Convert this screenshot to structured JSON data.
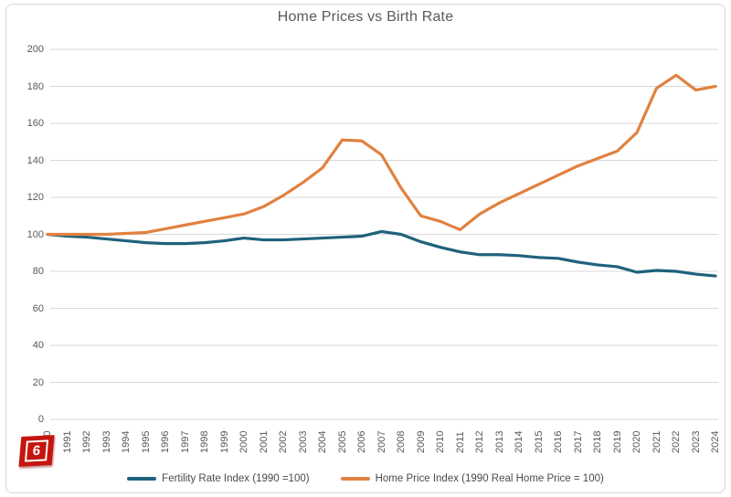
{
  "title": "Home Prices vs Birth Rate",
  "chart_data": {
    "type": "line",
    "title": "Home Prices vs Birth Rate",
    "categories": [
      "1990",
      "1991",
      "1992",
      "1993",
      "1994",
      "1995",
      "1996",
      "1997",
      "1998",
      "1999",
      "2000",
      "2001",
      "2002",
      "2003",
      "2004",
      "2005",
      "2006",
      "2007",
      "2008",
      "2009",
      "2010",
      "2011",
      "2012",
      "2013",
      "2014",
      "2015",
      "2016",
      "2017",
      "2018",
      "2019",
      "2020",
      "2021",
      "2022",
      "2023",
      "2024"
    ],
    "series": [
      {
        "name": "Fertility Rate Index (1990 =100)",
        "color": "#1f627d",
        "values": [
          100,
          99,
          98.5,
          97.5,
          96.5,
          95.5,
          95,
          95,
          95.5,
          96.5,
          98,
          97,
          97,
          97.5,
          98,
          98.5,
          99,
          101.5,
          100,
          96,
          93,
          90.5,
          89,
          89,
          88.5,
          87.5,
          87,
          85,
          83.5,
          82.5,
          79.5,
          80.5,
          80,
          78.5,
          77.5
        ]
      },
      {
        "name": "Home Price Index (1990 Real Home Price = 100)",
        "color": "#e1813f",
        "values": [
          100,
          100,
          100,
          100,
          100.5,
          101,
          103,
          105,
          107,
          109,
          111,
          115,
          121,
          128,
          136,
          151,
          150.5,
          143,
          125,
          110,
          107,
          102.5,
          111,
          117,
          122,
          127,
          132,
          137,
          141,
          145,
          155,
          179,
          186,
          178,
          180
        ]
      }
    ],
    "ylim": [
      0,
      200
    ],
    "y_ticks": [
      0,
      20,
      40,
      60,
      80,
      100,
      120,
      140,
      160,
      180,
      200
    ],
    "grid": "horizontal",
    "gridline_color": "#d9d9d9",
    "legend_position": "bottom"
  },
  "legend": {
    "items": [
      {
        "label": "Fertility Rate Index (1990 =100)",
        "color": "#1f627d"
      },
      {
        "label": "Home Price Index (1990 Real Home Price = 100)",
        "color": "#e1813f"
      }
    ]
  },
  "badge": {
    "label": "6",
    "color": "#c5150f"
  }
}
